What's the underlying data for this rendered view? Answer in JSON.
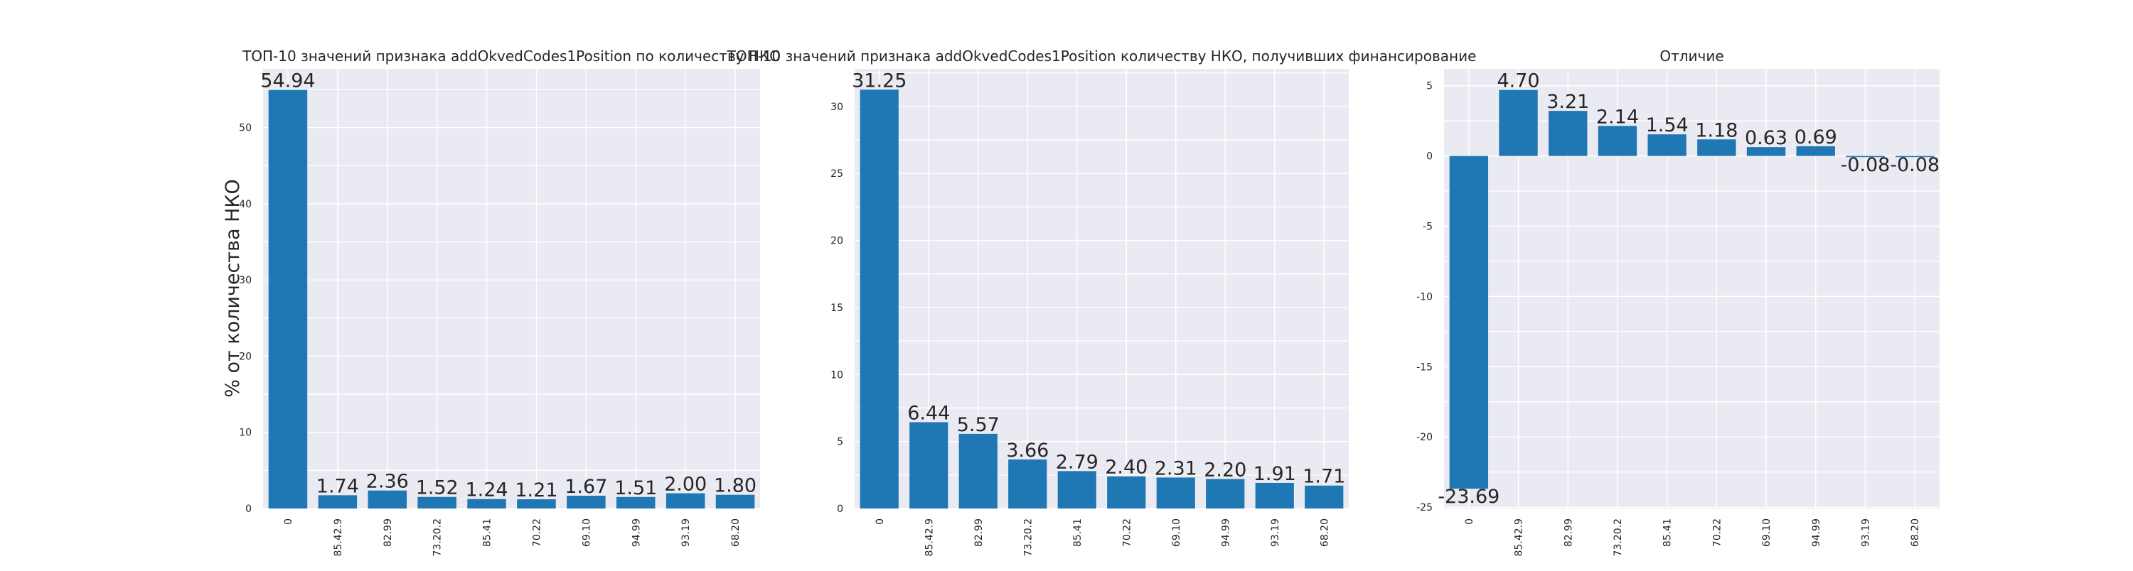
{
  "figure": {
    "ylabel": "% от количества НКО"
  },
  "chart_data": [
    {
      "type": "bar",
      "title": "ТОП-10 значений признака addOkvedCodes1Position по количеству НКО",
      "xlabel": "",
      "ylabel": "% от количества НКО",
      "categories": [
        "0",
        "85.42.9",
        "82.99",
        "73.20.2",
        "85.41",
        "70.22",
        "69.10",
        "94.99",
        "93.19",
        "68.20"
      ],
      "values": [
        54.94,
        1.74,
        2.36,
        1.52,
        1.24,
        1.21,
        1.67,
        1.51,
        2.0,
        1.8
      ],
      "value_labels": [
        "54.94",
        "1.74",
        "2.36",
        "1.52",
        "1.24",
        "1.21",
        "1.67",
        "1.51",
        "2.00",
        "1.80"
      ],
      "ylim": [
        0,
        57.7
      ],
      "yticks": [
        0,
        10,
        20,
        30,
        40,
        50
      ],
      "color": "#1f77b4",
      "grid": true
    },
    {
      "type": "bar",
      "title": "ТОП-10 значений признака addOkvedCodes1Position количеству НКО, получивших финансирование",
      "xlabel": "",
      "ylabel": "",
      "categories": [
        "0",
        "85.42.9",
        "82.99",
        "73.20.2",
        "85.41",
        "70.22",
        "69.10",
        "94.99",
        "93.19",
        "68.20"
      ],
      "values": [
        31.25,
        6.44,
        5.57,
        3.66,
        2.79,
        2.4,
        2.31,
        2.2,
        1.91,
        1.71
      ],
      "value_labels": [
        "31.25",
        "6.44",
        "5.57",
        "3.66",
        "2.79",
        "2.40",
        "2.31",
        "2.20",
        "1.91",
        "1.71"
      ],
      "ylim": [
        0,
        32.8
      ],
      "yticks": [
        0,
        5,
        10,
        15,
        20,
        25,
        30
      ],
      "color": "#1f77b4",
      "grid": true
    },
    {
      "type": "bar",
      "title": "Отличие",
      "xlabel": "",
      "ylabel": "",
      "categories": [
        "0",
        "85.42.9",
        "82.99",
        "73.20.2",
        "85.41",
        "70.22",
        "69.10",
        "94.99",
        "93.19",
        "68.20"
      ],
      "values": [
        -23.69,
        4.7,
        3.21,
        2.14,
        1.54,
        1.18,
        0.63,
        0.69,
        -0.08,
        -0.08
      ],
      "value_labels": [
        "-23.69",
        "4.70",
        "3.21",
        "2.14",
        "1.54",
        "1.18",
        "0.63",
        "0.69",
        "-0.08",
        "-0.08"
      ],
      "ylim": [
        -25.1,
        6.2
      ],
      "yticks": [
        -25,
        -20,
        -15,
        -10,
        -5,
        0,
        5
      ],
      "color": "#1f77b4",
      "grid": true
    }
  ]
}
